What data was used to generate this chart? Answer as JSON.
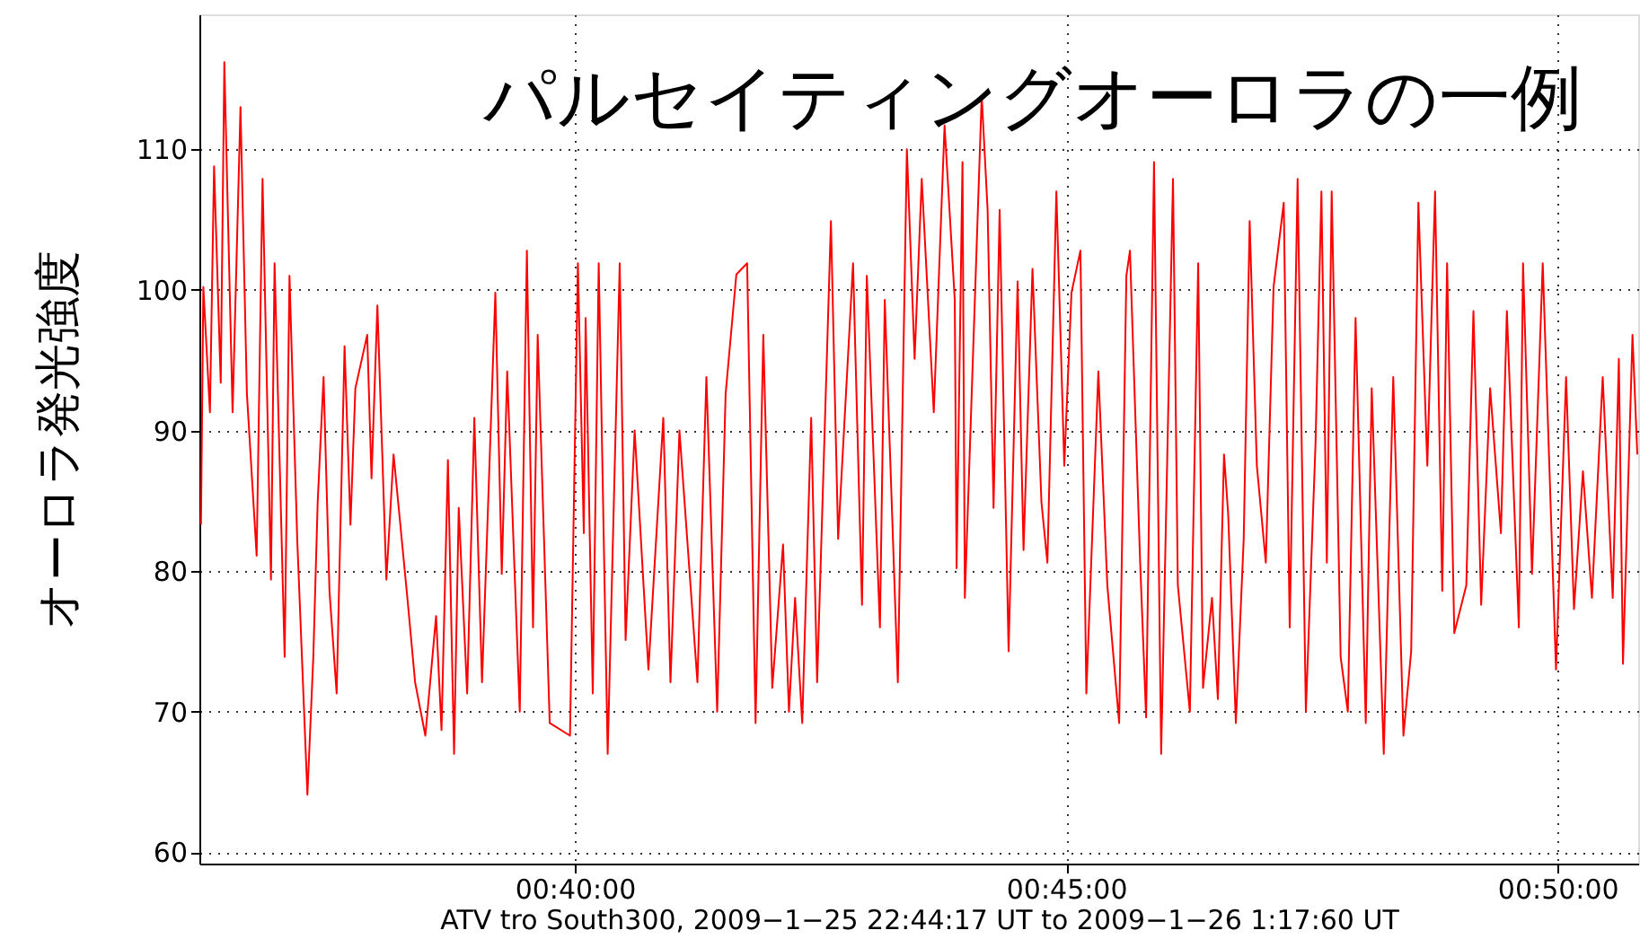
{
  "chart_data": {
    "type": "line",
    "title": "パルセイティングオーロラの一例",
    "xlabel": "ATV tro South300, 2009−1−25 22:44:17 UT to 2009−1−26 1:17:60 UT",
    "ylabel": "オーロラ発光強度",
    "x": [
      0.60327,
      0.60367,
      0.60479,
      0.60549,
      0.60662,
      0.60723,
      0.60863,
      0.60997,
      0.61106,
      0.61271,
      0.61371,
      0.61514,
      0.61575,
      0.61746,
      0.61828,
      0.61959,
      0.62132,
      0.62232,
      0.62306,
      0.62406,
      0.62506,
      0.62628,
      0.62762,
      0.62862,
      0.62945,
      0.63146,
      0.63219,
      0.63319,
      0.63471,
      0.63593,
      0.63827,
      0.63958,
      0.64132,
      0.64314,
      0.64406,
      0.64515,
      0.64619,
      0.64698,
      0.64841,
      0.64963,
      0.65093,
      0.65319,
      0.65428,
      0.6552,
      0.65733,
      0.65854,
      0.65958,
      0.66037,
      0.66241,
      0.66585,
      0.66719,
      0.66819,
      0.6685,
      0.66971,
      0.67072,
      0.67224,
      0.67428,
      0.67528,
      0.67681,
      0.67915,
      0.68167,
      0.68289,
      0.68441,
      0.68746,
      0.68898,
      0.69081,
      0.69224,
      0.69406,
      0.69589,
      0.69732,
      0.69863,
      0.70015,
      0.70198,
      0.70298,
      0.70402,
      0.70523,
      0.70675,
      0.70776,
      0.7101,
      0.71132,
      0.71385,
      0.71537,
      0.71619,
      0.71841,
      0.71923,
      0.72145,
      0.72298,
      0.72429,
      0.7255,
      0.72754,
      0.72937,
      0.7311,
      0.73141,
      0.73241,
      0.73281,
      0.73567,
      0.73667,
      0.73768,
      0.73871,
      0.74023,
      0.74176,
      0.74276,
      0.74428,
      0.7458,
      0.74681,
      0.74833,
      0.74967,
      0.75089,
      0.75241,
      0.75341,
      0.75545,
      0.75697,
      0.75898,
      0.7602,
      0.76081,
      0.76254,
      0.76355,
      0.76489,
      0.7661,
      0.76811,
      0.76893,
      0.77097,
      0.77238,
      0.7732,
      0.77472,
      0.77572,
      0.77676,
      0.77746,
      0.77877,
      0.7801,
      0.78111,
      0.78233,
      0.78385,
      0.78516,
      0.78689,
      0.7879,
      0.78924,
      0.79064,
      0.79228,
      0.79328,
      0.7942,
      0.79502,
      0.79654,
      0.79776,
      0.79907,
      0.8008,
      0.80181,
      0.80385,
      0.80546,
      0.80719,
      0.8085,
      0.80972,
      0.81124,
      0.81255,
      0.81377,
      0.81459,
      0.81581,
      0.81785,
      0.81906,
      0.82037,
      0.82189,
      0.82372,
      0.82473,
      0.82676,
      0.82747,
      0.82899,
      0.83081,
      0.83306,
      0.83477,
      0.83611,
      0.83763,
      0.83915,
      0.84098,
      0.84268,
      0.84372,
      0.84442,
      0.84603,
      0.84685
    ],
    "series": [
      {
        "color": "#ff0000",
        "values": [
          83.3,
          100.2,
          91.3,
          108.8,
          93.4,
          116.2,
          91.3,
          113.0,
          92.6,
          81.1,
          107.9,
          79.4,
          101.9,
          73.9,
          101.0,
          82.3,
          64.1,
          73.9,
          84.9,
          93.8,
          78.6,
          71.3,
          96.0,
          83.3,
          93.0,
          96.8,
          86.6,
          98.9,
          79.4,
          88.3,
          78.1,
          72.1,
          68.3,
          76.8,
          68.7,
          87.9,
          67.0,
          84.5,
          71.3,
          90.9,
          72.1,
          99.8,
          79.8,
          94.2,
          70.0,
          102.8,
          76.0,
          96.8,
          69.2,
          68.3,
          101.9,
          82.7,
          98.0,
          71.3,
          101.9,
          67.0,
          101.9,
          75.1,
          90.0,
          73.0,
          90.9,
          72.1,
          90.0,
          72.1,
          93.8,
          70.0,
          92.6,
          101.1,
          101.9,
          69.2,
          96.8,
          71.7,
          81.9,
          70.0,
          78.1,
          69.2,
          90.9,
          72.1,
          104.9,
          82.3,
          101.9,
          77.6,
          101.0,
          76.0,
          99.3,
          72.1,
          110.0,
          95.1,
          107.9,
          91.3,
          111.7,
          99.3,
          80.2,
          109.1,
          78.1,
          113.8,
          105.7,
          84.5,
          105.7,
          74.3,
          100.6,
          81.5,
          101.5,
          84.9,
          80.6,
          107.0,
          87.5,
          99.8,
          102.8,
          71.3,
          94.2,
          79.0,
          69.2,
          101.0,
          102.8,
          80.6,
          69.6,
          109.1,
          67.0,
          107.9,
          79.0,
          70.0,
          101.9,
          71.7,
          78.1,
          70.9,
          88.3,
          84.1,
          69.2,
          82.3,
          104.9,
          87.5,
          80.6,
          100.2,
          106.2,
          76.0,
          107.9,
          70.0,
          89.1,
          107.0,
          80.6,
          107.0,
          73.9,
          70.0,
          98.0,
          69.2,
          93.0,
          67.0,
          93.8,
          68.3,
          74.3,
          106.2,
          87.5,
          107.0,
          78.6,
          101.9,
          75.6,
          79.0,
          98.5,
          77.6,
          93.0,
          82.7,
          98.5,
          76.0,
          101.9,
          79.8,
          101.9,
          73.0,
          93.8,
          77.3,
          87.1,
          78.1,
          93.8,
          78.1,
          95.1,
          73.4,
          96.8,
          88.3
        ]
      }
    ],
    "xlim": [
      0.603,
      0.847
    ],
    "xticks": [
      {
        "value": 0.66667,
        "label": "00:40:00"
      },
      {
        "value": 0.75,
        "label": "00:45:00"
      },
      {
        "value": 0.83333,
        "label": "00:50:00"
      }
    ],
    "ylim": [
      59.2,
      119.6
    ],
    "yticks": [
      60,
      70,
      80,
      90,
      100,
      110
    ],
    "grid": true,
    "marker": "none",
    "line_style": "solid"
  }
}
